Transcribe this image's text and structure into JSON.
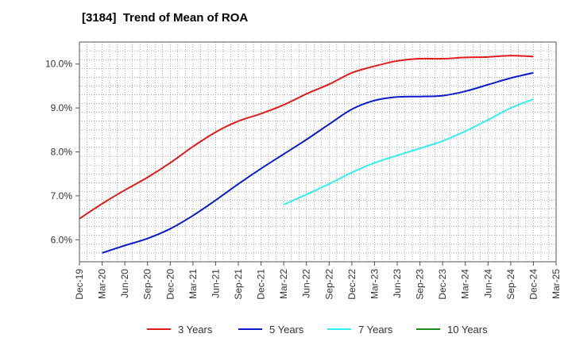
{
  "chart_data": {
    "type": "line",
    "title": "[3184]  Trend of Mean of ROA",
    "xlabel": "",
    "ylabel": "",
    "x": [
      "Dec-19",
      "Mar-20",
      "Jun-20",
      "Sep-20",
      "Dec-20",
      "Mar-21",
      "Jun-21",
      "Sep-21",
      "Dec-21",
      "Mar-22",
      "Jun-22",
      "Sep-22",
      "Dec-22",
      "Mar-23",
      "Jun-23",
      "Sep-23",
      "Dec-23",
      "Mar-24",
      "Jun-24",
      "Sep-24",
      "Dec-24",
      "Mar-25"
    ],
    "ylim": [
      5.5,
      10.5
    ],
    "yticks": [
      6.0,
      7.0,
      8.0,
      9.0,
      10.0
    ],
    "ytick_labels": [
      "6.0%",
      "7.0%",
      "8.0%",
      "9.0%",
      "10.0%"
    ],
    "grid": true,
    "legend_position": "bottom",
    "series": [
      {
        "name": "3 Years",
        "color": "#e31a1c",
        "values": [
          6.48,
          6.82,
          7.13,
          7.42,
          7.75,
          8.12,
          8.45,
          8.7,
          8.87,
          9.07,
          9.32,
          9.54,
          9.8,
          9.95,
          10.07,
          10.12,
          10.12,
          10.15,
          10.16,
          10.19,
          10.17,
          null
        ]
      },
      {
        "name": "5 Years",
        "color": "#0b1bcc",
        "values": [
          null,
          5.7,
          5.87,
          6.03,
          6.25,
          6.55,
          6.9,
          7.27,
          7.62,
          7.95,
          8.28,
          8.63,
          8.97,
          9.17,
          9.25,
          9.26,
          9.28,
          9.38,
          9.53,
          9.68,
          9.8,
          null
        ]
      },
      {
        "name": "7 Years",
        "color": "#33f0f0",
        "values": [
          null,
          null,
          null,
          null,
          null,
          null,
          null,
          null,
          null,
          6.8,
          7.03,
          7.27,
          7.53,
          7.75,
          7.92,
          8.08,
          8.25,
          8.47,
          8.73,
          9.0,
          9.2,
          null
        ]
      },
      {
        "name": "10 Years",
        "color": "#1a8a1a",
        "values": [
          null,
          null,
          null,
          null,
          null,
          null,
          null,
          null,
          null,
          null,
          null,
          null,
          null,
          null,
          null,
          null,
          null,
          null,
          null,
          null,
          null,
          null
        ]
      }
    ]
  }
}
